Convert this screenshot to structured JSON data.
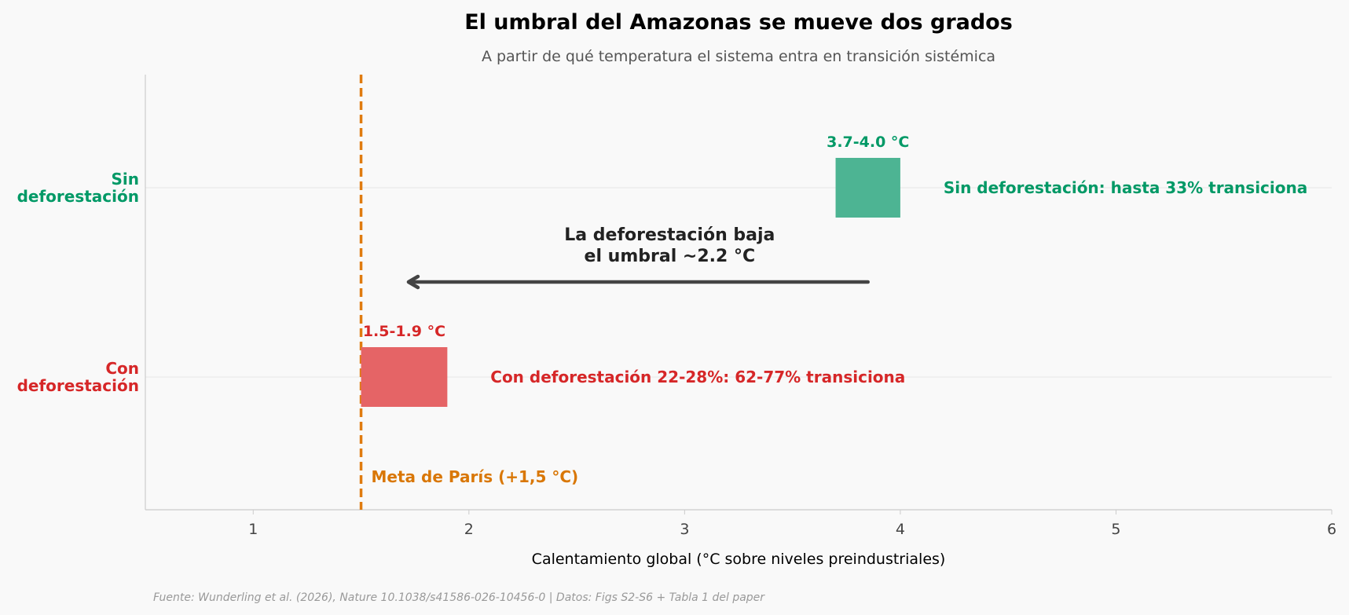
{
  "chart_data": {
    "type": "bar",
    "orientation": "horizontal-range",
    "title": "El umbral del Amazonas se mueve dos grados",
    "subtitle": "A partir de qué temperatura el sistema entra en transición sistémica",
    "xlabel": "Calentamiento global (°C sobre niveles preindustriales)",
    "ylabel": "",
    "xlim": [
      0.5,
      6
    ],
    "xticks": [
      1,
      2,
      3,
      4,
      5,
      6
    ],
    "grid": "horizontal",
    "categories": [
      {
        "name": "sin",
        "label_lines": [
          "Sin",
          "deforestación"
        ],
        "range": [
          3.7,
          4.0
        ],
        "range_label": "3.7-4.0 °C",
        "side_label": "Sin deforestación: hasta 33% transiciona",
        "side_label_x": 4.2,
        "color": "#009966",
        "bar_color": "#4db493"
      },
      {
        "name": "con",
        "label_lines": [
          "Con",
          "deforestación"
        ],
        "range": [
          1.5,
          1.9
        ],
        "range_label": "1.5-1.9 °C",
        "side_label": "Con deforestación 22-28%: 62-77% transiciona",
        "side_label_x": 2.1,
        "color": "#d62728",
        "bar_color": "#e56466"
      }
    ],
    "reference_line": {
      "x": 1.5,
      "label": "Meta de París (+1,5 °C)",
      "color": "#e07b0f",
      "label_color": "#d97706"
    },
    "annotation": {
      "text_lines": [
        "La deforestación baja",
        "el umbral ~2.2 °C"
      ],
      "arrow_from": 3.85,
      "arrow_to": 1.72,
      "color": "#222222",
      "arrow_color": "#444444"
    }
  },
  "source": "Fuente: Wunderling et al. (2026), Nature 10.1038/s41586-026-10456-0 | Datos: Figs S2-S6 + Tabla 1 del paper",
  "colors": {
    "background": "#f9f9f9",
    "axis": "#cccccc",
    "grid": "#e6e6e6",
    "subtitle": "#555555",
    "source": "#999999"
  }
}
